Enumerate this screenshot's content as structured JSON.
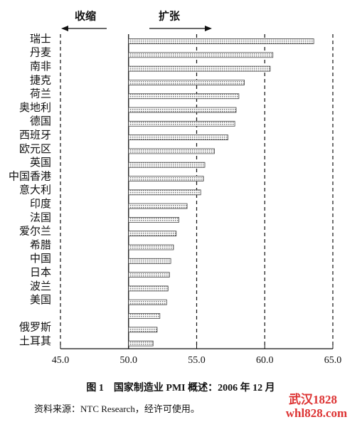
{
  "chart_data": {
    "type": "barh",
    "annotations": [
      "收缩",
      "扩张"
    ],
    "categories": [
      "瑞士",
      "丹麦",
      "南非",
      "捷克",
      "荷兰",
      "奥地利",
      "德国",
      "西班牙",
      "欧元区",
      "英国",
      "中国香港",
      "意大利",
      "印度",
      "法国",
      "爱尔兰",
      "希腊",
      "中国",
      "日本",
      "波兰",
      "美国",
      null,
      "俄罗斯",
      "土耳其"
    ],
    "values": [
      63.6,
      60.6,
      60.4,
      58.5,
      58.1,
      57.9,
      57.8,
      57.3,
      56.3,
      55.6,
      55.5,
      55.3,
      54.3,
      53.7,
      53.5,
      53.3,
      53.1,
      53.0,
      52.9,
      52.8,
      52.3,
      52.1,
      51.8
    ],
    "color": "#d6d6d6",
    "base": 50,
    "xlim": [
      45,
      65
    ],
    "xticks": [
      {
        "value": 45,
        "label": "45.0"
      },
      {
        "value": 50,
        "label": "50.0"
      },
      {
        "value": 55,
        "label": "55.0"
      },
      {
        "value": 60,
        "label": "60.0"
      },
      {
        "value": 65,
        "label": "65.0"
      }
    ],
    "caption": "图 1　国家制造业 PMI 概述：2006 年 12 月",
    "source": "资料来源：NTC Research，经许可使用。",
    "watermark": [
      "武汉1828",
      "whl828.com"
    ]
  }
}
